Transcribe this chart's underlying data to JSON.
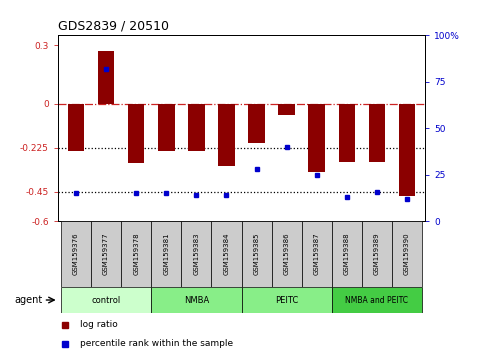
{
  "title": "GDS2839 / 20510",
  "samples": [
    "GSM159376",
    "GSM159377",
    "GSM159378",
    "GSM159381",
    "GSM159383",
    "GSM159384",
    "GSM159385",
    "GSM159386",
    "GSM159387",
    "GSM159388",
    "GSM159389",
    "GSM159390"
  ],
  "log_ratio": [
    -0.24,
    0.27,
    -0.3,
    -0.24,
    -0.24,
    -0.32,
    -0.2,
    -0.055,
    -0.35,
    -0.295,
    -0.295,
    -0.47
  ],
  "percentile_rank": [
    15,
    82,
    15,
    15,
    14,
    14,
    28,
    40,
    25,
    13,
    16,
    12
  ],
  "bar_color": "#8B0000",
  "dot_color": "#0000CC",
  "ylim_left": [
    -0.6,
    0.35
  ],
  "ylim_right": [
    0,
    100
  ],
  "yticks_left": [
    0.3,
    0,
    -0.225,
    -0.45,
    -0.6
  ],
  "yticks_right": [
    100,
    75,
    50,
    25,
    0
  ],
  "hline_0_color": "#cc2222",
  "hline_225_color": "#000000",
  "hline_45_color": "#000000",
  "legend_log_ratio": "log ratio",
  "legend_percentile": "percentile rank within the sample",
  "agent_label": "agent",
  "group_labels": [
    "control",
    "NMBA",
    "PEITC",
    "NMBA and PEITC"
  ],
  "group_starts": [
    0,
    3,
    6,
    9
  ],
  "group_ends": [
    2,
    5,
    8,
    11
  ],
  "group_colors": [
    "#ccffcc",
    "#88ee88",
    "#88ee88",
    "#44cc44"
  ],
  "sample_box_color": "#cccccc",
  "bar_width": 0.55
}
